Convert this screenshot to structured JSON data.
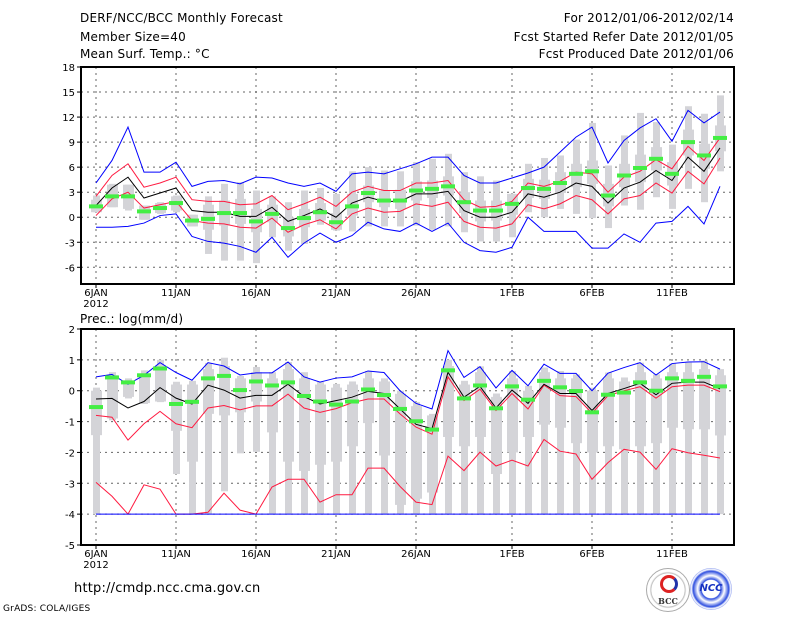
{
  "header": {
    "title": "DERF/NCC/BCC Monthly Forecast",
    "member_size": "Member Size=40",
    "variable": "Mean Surf. Temp.: °C",
    "period": "For 2012/01/06-2012/02/14",
    "started": "Fcst Started Refer Date 2012/01/05",
    "produced": "Fcst Produced Date 2012/01/06"
  },
  "footer": {
    "url": "http://cmdp.ncc.cma.gov.cn",
    "credit": "GrADS: COLA/IGES",
    "logo_bcc": "BCC",
    "logo_ncc": "NCC"
  },
  "colors": {
    "max_min": "#0000ff",
    "quartile": "#ff1a40",
    "mean": "#000000",
    "obs": "#44ee44",
    "spread": "#d4d4d8"
  },
  "chart_data": [
    {
      "type": "line",
      "title": "Mean Surf. Temp.: °C",
      "ylabel": "",
      "ylim": [
        -8,
        18
      ],
      "yticks": [
        18,
        15,
        12,
        9,
        6,
        3,
        0,
        -3,
        -6
      ],
      "grid": true,
      "x_days": 40,
      "xtick_days": [
        0,
        5,
        10,
        15,
        20,
        26,
        31,
        36
      ],
      "xtick_labels": [
        "6JAN",
        "11JAN",
        "16JAN",
        "21JAN",
        "26JAN",
        "1FEB",
        "6FEB",
        "11FEB"
      ],
      "xyear": "2012",
      "series": [
        {
          "name": "max",
          "color": "#0000ff",
          "values": [
            4.1,
            6.8,
            10.8,
            5.4,
            5.4,
            6.6,
            3.7,
            4.3,
            4.4,
            4.0,
            4.8,
            4.7,
            4.1,
            3.7,
            4.1,
            3.1,
            5.2,
            5.4,
            5.2,
            5.8,
            6.4,
            7.2,
            7.2,
            5.0,
            4.1,
            4.1,
            4.7,
            5.3,
            6.0,
            7.8,
            9.6,
            10.8,
            6.5,
            9.2,
            10.7,
            11.8,
            9.1,
            12.8,
            11.3,
            12.6
          ]
        },
        {
          "name": "upper",
          "color": "#ff1a40",
          "values": [
            2.5,
            5.0,
            6.4,
            3.6,
            4.1,
            4.8,
            2.1,
            1.9,
            1.9,
            1.5,
            1.6,
            2.6,
            0.9,
            1.6,
            2.4,
            1.3,
            3.0,
            3.7,
            3.2,
            3.2,
            4.1,
            4.1,
            4.4,
            2.1,
            1.2,
            1.3,
            1.9,
            4.1,
            3.7,
            4.3,
            5.4,
            5.2,
            3.0,
            4.8,
            5.5,
            6.9,
            5.8,
            8.5,
            6.8,
            9.5
          ]
        },
        {
          "name": "mean",
          "color": "#000000",
          "values": [
            1.4,
            3.5,
            4.8,
            2.3,
            2.9,
            3.5,
            0.8,
            0.6,
            0.6,
            0.1,
            0.1,
            1.2,
            -0.5,
            0.2,
            1.0,
            0.0,
            1.7,
            2.4,
            1.9,
            1.9,
            2.8,
            2.8,
            3.1,
            0.8,
            0.0,
            0.0,
            0.6,
            2.8,
            2.4,
            3.0,
            4.1,
            3.7,
            1.7,
            3.5,
            4.2,
            5.6,
            4.4,
            7.2,
            5.5,
            8.3
          ]
        },
        {
          "name": "lower",
          "color": "#ff1a40",
          "values": [
            0.2,
            2.2,
            3.0,
            1.1,
            1.5,
            1.9,
            -0.4,
            -0.7,
            -0.8,
            -1.2,
            -1.3,
            -0.1,
            -1.8,
            -0.9,
            -0.3,
            -1.4,
            0.4,
            1.1,
            0.6,
            0.7,
            1.6,
            1.3,
            1.8,
            -0.5,
            -1.2,
            -1.3,
            -0.8,
            1.5,
            1.0,
            1.6,
            2.6,
            2.1,
            0.4,
            2.2,
            2.6,
            4.1,
            2.9,
            5.5,
            4.0,
            7.1
          ]
        },
        {
          "name": "min",
          "color": "#0000ff",
          "values": [
            -1.2,
            -1.2,
            -1.1,
            -0.7,
            0.2,
            0.4,
            -2.3,
            -2.9,
            -3.1,
            -3.5,
            -4.2,
            -2.4,
            -4.8,
            -3.1,
            -1.9,
            -3.0,
            -2.2,
            -0.6,
            -1.4,
            -1.7,
            -0.7,
            -1.7,
            -0.7,
            -3.0,
            -4.0,
            -4.2,
            -3.6,
            0.0,
            -1.7,
            -1.7,
            -1.7,
            -3.7,
            -3.7,
            -2.0,
            -3.0,
            -0.7,
            -0.5,
            1.3,
            -0.8,
            3.7
          ]
        }
      ],
      "observed": [
        1.3,
        2.5,
        2.5,
        0.7,
        1.1,
        1.7,
        -0.4,
        -0.2,
        0.5,
        0.5,
        -0.5,
        0.4,
        -1.3,
        -0.1,
        0.6,
        -0.6,
        1.3,
        2.9,
        2.0,
        2.0,
        3.2,
        3.4,
        3.7,
        1.8,
        0.8,
        0.8,
        1.6,
        3.5,
        3.4,
        4.1,
        5.2,
        5.5,
        2.6,
        5.0,
        5.9,
        7.0,
        5.2,
        9.0,
        7.4,
        9.5
      ],
      "spread": {
        "whisk_high": [
          2.6,
          4.0,
          3.9,
          1.4,
          1.8,
          2.6,
          0.3,
          2.5,
          4.0,
          4.2,
          3.2,
          2.5,
          1.8,
          3.2,
          3.5,
          2.8,
          5.5,
          6.0,
          5.6,
          5.5,
          6.6,
          7.0,
          7.6,
          5.4,
          4.9,
          4.4,
          2.8,
          6.4,
          7.1,
          7.4,
          9.3,
          11.3,
          6.2,
          9.8,
          12.5,
          11.4,
          8.7,
          13.3,
          12.4,
          14.6
        ],
        "box_high": [
          2.1,
          3.9,
          3.9,
          1.4,
          1.7,
          2.5,
          0.3,
          1.5,
          2.0,
          2.2,
          1.0,
          1.5,
          0.0,
          1.0,
          1.7,
          0.5,
          2.8,
          3.8,
          3.2,
          3.3,
          4.3,
          4.4,
          4.9,
          3.0,
          2.0,
          2.0,
          2.8,
          4.6,
          4.5,
          5.4,
          6.4,
          6.8,
          4.0,
          6.4,
          7.5,
          8.4,
          6.6,
          10.5,
          8.8,
          11.0
        ],
        "box_low": [
          0.6,
          1.2,
          1.0,
          -0.3,
          0.5,
          0.8,
          -1.1,
          -1.5,
          -1.0,
          -0.8,
          -1.8,
          -0.6,
          -2.3,
          -1.2,
          -0.4,
          -1.5,
          0.2,
          1.8,
          1.2,
          1.0,
          2.0,
          2.3,
          2.6,
          0.5,
          -0.5,
          -0.4,
          0.3,
          2.3,
          2.2,
          2.9,
          3.6,
          4.0,
          1.3,
          3.6,
          4.2,
          5.6,
          3.8,
          7.4,
          5.8,
          7.9
        ],
        "whisk_low": [
          0.6,
          1.2,
          0.8,
          -0.3,
          0.4,
          0.6,
          -1.1,
          -4.4,
          -5.2,
          -5.2,
          -5.5,
          -2.4,
          -4.0,
          -3.2,
          -0.9,
          -1.6,
          -1.7,
          -1.1,
          -1.1,
          -1.1,
          -1.0,
          -1.5,
          -1.1,
          -1.8,
          -2.9,
          -2.9,
          -2.4,
          0.6,
          0.0,
          1.0,
          0.4,
          -0.1,
          -1.3,
          1.4,
          0.9,
          2.4,
          1.0,
          3.4,
          1.8,
          5.5
        ]
      }
    },
    {
      "type": "line",
      "title": "Prec.: log(mm/d)",
      "ylabel": "Prec.: log(mm/d)",
      "ylim": [
        -5,
        2
      ],
      "yticks": [
        2,
        1,
        0,
        -1,
        -2,
        -3,
        -4,
        -5
      ],
      "grid": true,
      "x_days": 40,
      "xtick_days": [
        0,
        5,
        10,
        15,
        20,
        26,
        31,
        36
      ],
      "xtick_labels": [
        "6JAN",
        "11JAN",
        "16JAN",
        "21JAN",
        "26JAN",
        "1FEB",
        "6FEB",
        "11FEB"
      ],
      "xyear": "2012",
      "series": [
        {
          "name": "max",
          "color": "#0000ff",
          "values": [
            0.45,
            0.53,
            0.21,
            0.5,
            0.91,
            0.59,
            0.34,
            0.91,
            0.8,
            0.51,
            0.58,
            0.58,
            0.93,
            0.45,
            0.28,
            0.41,
            0.45,
            0.64,
            0.59,
            0.0,
            -0.41,
            -0.59,
            1.3,
            0.43,
            0.78,
            0.09,
            0.66,
            0.16,
            0.86,
            0.56,
            0.56,
            0.0,
            0.57,
            0.75,
            0.91,
            0.51,
            0.88,
            0.93,
            0.94,
            0.7
          ]
        },
        {
          "name": "upper",
          "color": "#ff1a40",
          "values": [
            -0.8,
            -0.86,
            -1.6,
            -1.07,
            -0.67,
            -1.07,
            -1.2,
            -0.56,
            -0.48,
            -0.62,
            -0.49,
            -0.49,
            -0.11,
            -0.56,
            -0.7,
            -0.58,
            -0.39,
            -0.27,
            -0.27,
            -0.75,
            -1.18,
            -1.41,
            0.45,
            -0.32,
            0.05,
            -0.64,
            -0.09,
            -0.59,
            0.18,
            -0.16,
            -0.19,
            -0.73,
            -0.16,
            0.0,
            0.13,
            -0.24,
            0.13,
            0.18,
            0.18,
            -0.03
          ]
        },
        {
          "name": "mean",
          "color": "#000000",
          "values": [
            -0.27,
            -0.25,
            -0.56,
            -0.35,
            0.1,
            -0.24,
            -0.43,
            0.18,
            0.02,
            -0.24,
            -0.15,
            -0.15,
            0.21,
            -0.19,
            -0.43,
            -0.32,
            -0.21,
            -0.02,
            -0.09,
            -0.59,
            -1.09,
            -1.23,
            0.6,
            -0.21,
            0.14,
            -0.56,
            0.02,
            -0.41,
            0.21,
            -0.09,
            -0.09,
            -0.64,
            -0.09,
            0.07,
            0.24,
            -0.13,
            0.24,
            0.28,
            0.28,
            0.06
          ]
        },
        {
          "name": "lower",
          "color": "#ff1a40",
          "values": [
            -2.97,
            -3.42,
            -4.0,
            -3.05,
            -3.19,
            -4.0,
            -4.0,
            -3.94,
            -3.32,
            -3.87,
            -4.0,
            -3.12,
            -2.87,
            -2.87,
            -3.61,
            -3.37,
            -3.37,
            -2.51,
            -2.51,
            -3.1,
            -3.61,
            -3.69,
            -2.12,
            -2.59,
            -1.99,
            -2.44,
            -2.25,
            -2.44,
            -1.58,
            -1.96,
            -2.05,
            -2.87,
            -2.33,
            -1.9,
            -1.99,
            -2.55,
            -1.88,
            -2.01,
            -2.09,
            -2.18
          ]
        },
        {
          "name": "min",
          "color": "#0000ff",
          "values": [
            -4,
            -4,
            -4,
            -4,
            -4,
            -4,
            -4,
            -4,
            -4,
            -4,
            -4,
            -4,
            -4,
            -4,
            -4,
            -4,
            -4,
            -4,
            -4,
            -4,
            -4,
            -4,
            -4,
            -4,
            -4,
            -4,
            -4,
            -4,
            -4,
            -4,
            -4,
            -4,
            -4,
            -4,
            -4,
            -4,
            -4,
            -4,
            -4,
            -4
          ]
        }
      ],
      "observed": [
        -0.53,
        0.43,
        0.27,
        0.5,
        0.72,
        -0.43,
        -0.36,
        0.4,
        0.48,
        0.02,
        0.3,
        0.17,
        0.27,
        -0.17,
        -0.35,
        -0.45,
        -0.35,
        0.04,
        -0.14,
        -0.59,
        -0.99,
        -1.26,
        0.66,
        -0.25,
        0.17,
        -0.57,
        0.14,
        -0.29,
        0.32,
        0.11,
        -0.01,
        -0.7,
        -0.13,
        -0.06,
        0.27,
        0.0,
        0.4,
        0.32,
        0.45,
        0.14
      ],
      "spread": {
        "whisk_high": [
          0.1,
          0.6,
          0.4,
          0.66,
          1.0,
          0.29,
          0.32,
          0.9,
          1.07,
          0.48,
          0.77,
          0.6,
          0.93,
          0.6,
          0.28,
          0.22,
          0.3,
          0.64,
          0.4,
          0.0,
          -0.37,
          -0.75,
          1.0,
          0.32,
          0.79,
          -0.09,
          0.64,
          0.16,
          0.75,
          0.64,
          0.53,
          0.1,
          0.59,
          0.43,
          0.91,
          0.53,
          0.88,
          0.91,
          0.98,
          0.7
        ],
        "box_high": [
          0.0,
          0.5,
          0.3,
          0.5,
          0.8,
          0.2,
          0.2,
          0.7,
          0.8,
          0.4,
          0.6,
          0.4,
          0.7,
          0.4,
          0.2,
          0.1,
          0.2,
          0.4,
          0.3,
          -0.1,
          -0.5,
          -0.8,
          0.8,
          0.2,
          0.6,
          -0.2,
          0.4,
          0.0,
          0.6,
          0.4,
          0.4,
          0.0,
          0.4,
          0.3,
          0.6,
          0.4,
          0.6,
          0.6,
          0.7,
          0.5
        ],
        "box_low": [
          -1.44,
          -0.9,
          -0.2,
          -0.4,
          -0.35,
          -1.3,
          -2.3,
          -0.75,
          -0.8,
          -0.7,
          -0.35,
          -1.35,
          -2.3,
          -2.6,
          -2.4,
          -2.3,
          -1.8,
          -1.05,
          -2.1,
          -3.7,
          -3.5,
          -3.3,
          -1.5,
          -1.8,
          -1.5,
          -2.7,
          -2.0,
          -1.5,
          -1.1,
          -1.2,
          -1.7,
          -2.0,
          -1.8,
          -1.9,
          -1.8,
          -1.7,
          -1.2,
          -1.25,
          -1.25,
          -1.45
        ],
        "whisk_low": [
          -4,
          -0.96,
          -0.25,
          -0.43,
          -0.37,
          -2.7,
          -4,
          -4,
          -3.26,
          -2.03,
          -1.98,
          -4,
          -4,
          -4,
          -4,
          -4,
          -4,
          -4,
          -4,
          -4,
          -4,
          -4,
          -4,
          -4,
          -4,
          -4,
          -4,
          -4,
          -4,
          -4,
          -4,
          -4,
          -4,
          -4,
          -4,
          -4,
          -4,
          -4,
          -4,
          -4
        ]
      }
    }
  ]
}
